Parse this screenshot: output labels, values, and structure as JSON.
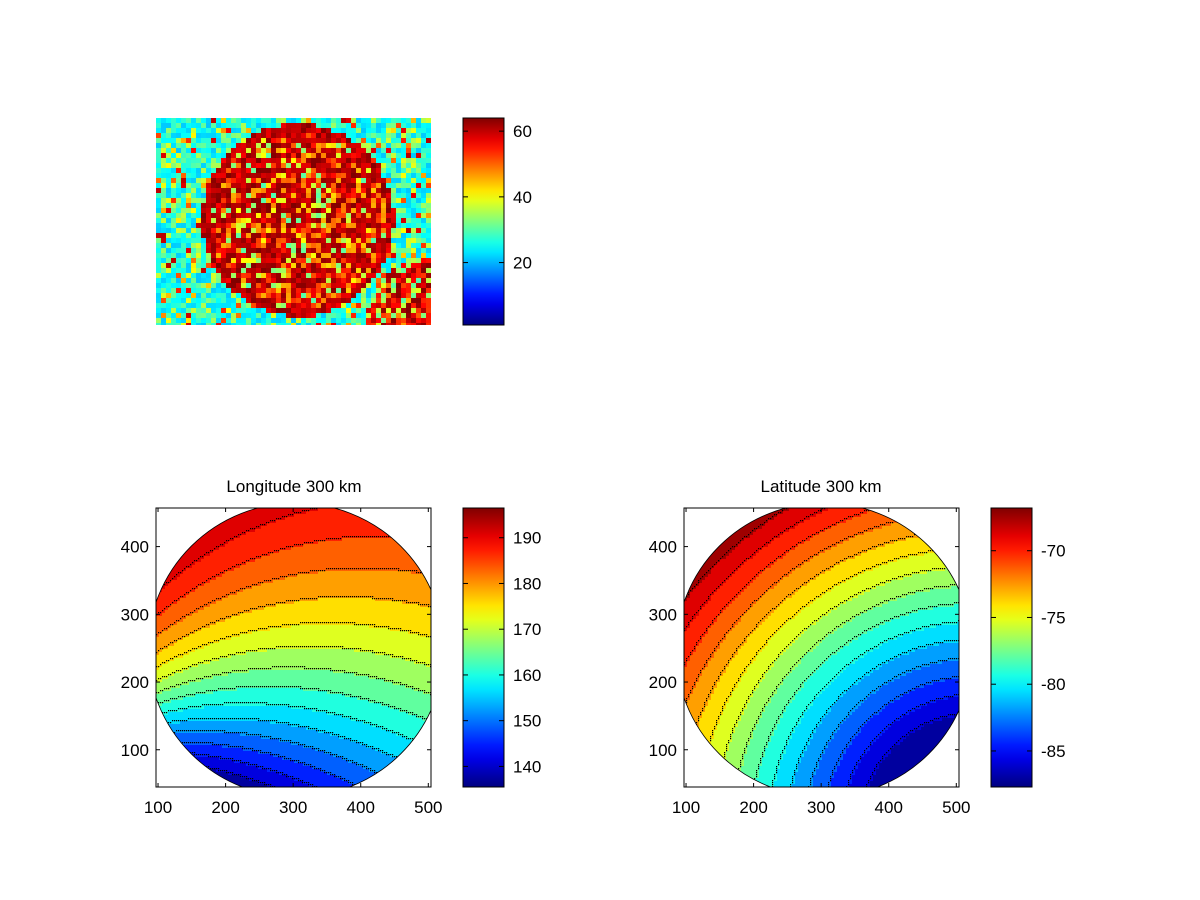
{
  "colormap": "jet",
  "chart_data": [
    {
      "type": "heatmap",
      "title": "",
      "xlabel": "",
      "ylabel": "",
      "axes_visible": false,
      "description_hint": "noisy image with bright circular disk",
      "colorbar": {
        "range": [
          1,
          64
        ],
        "ticks": [
          20,
          40,
          60
        ]
      }
    },
    {
      "type": "heatmap",
      "style": "filled-contour",
      "title": "Longitude 300 km",
      "xlabel": "",
      "ylabel": "",
      "xlim": [
        97,
        504
      ],
      "ylim": [
        45,
        457
      ],
      "xticks": [
        100,
        200,
        300,
        400,
        500
      ],
      "yticks": [
        100,
        200,
        300,
        400
      ],
      "colorbar": {
        "range": [
          135.5,
          196.5
        ],
        "ticks": [
          140,
          150,
          160,
          170,
          180,
          190
        ]
      },
      "contour_count": 16
    },
    {
      "type": "heatmap",
      "style": "filled-contour",
      "title": "Latitude 300 km",
      "xlabel": "",
      "ylabel": "",
      "xlim": [
        97,
        504
      ],
      "ylim": [
        45,
        457
      ],
      "xticks": [
        100,
        200,
        300,
        400,
        500
      ],
      "yticks": [
        100,
        200,
        300,
        400
      ],
      "colorbar": {
        "range": [
          -87.7,
          -66.8
        ],
        "ticks": [
          -85,
          -80,
          -75,
          -70
        ]
      },
      "contour_count": 16
    }
  ]
}
